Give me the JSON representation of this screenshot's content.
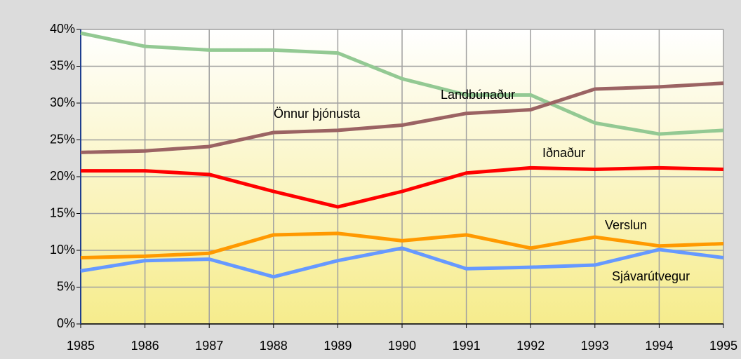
{
  "chart_data": {
    "type": "line",
    "x": [
      1985,
      1986,
      1987,
      1988,
      1989,
      1990,
      1991,
      1992,
      1993,
      1994,
      1995
    ],
    "xlim": [
      1985,
      1995
    ],
    "xticks": [
      1985,
      1986,
      1987,
      1988,
      1989,
      1990,
      1991,
      1992,
      1993,
      1994,
      1995
    ],
    "ylim": [
      0,
      40
    ],
    "yticks": [
      {
        "value": 0,
        "label": "0%"
      },
      {
        "value": 5,
        "label": "5%"
      },
      {
        "value": 10,
        "label": "10%"
      },
      {
        "value": 15,
        "label": "15%"
      },
      {
        "value": 20,
        "label": "20%"
      },
      {
        "value": 25,
        "label": "25%"
      },
      {
        "value": 30,
        "label": "30%"
      },
      {
        "value": 35,
        "label": "35%"
      },
      {
        "value": 40,
        "label": "40%"
      }
    ],
    "grid": true,
    "series": [
      {
        "name": "Landbúnaður",
        "color": "#93c993",
        "values": [
          39.5,
          37.7,
          37.2,
          37.2,
          36.8,
          33.3,
          31.1,
          31.1,
          27.3,
          25.8,
          26.3
        ]
      },
      {
        "name": "Önnur þjónusta",
        "color": "#9b6363",
        "values": [
          23.3,
          23.5,
          24.1,
          26.0,
          26.3,
          27.0,
          28.6,
          29.1,
          31.9,
          32.2,
          32.7
        ]
      },
      {
        "name": "Iðnaður",
        "color": "#ff0000",
        "values": [
          20.8,
          20.8,
          20.3,
          18.0,
          15.9,
          18.0,
          20.5,
          21.2,
          21.0,
          21.2,
          21.0
        ]
      },
      {
        "name": "Verslun",
        "color": "#ff9900",
        "values": [
          9.0,
          9.2,
          9.6,
          12.1,
          12.3,
          11.3,
          12.1,
          10.3,
          11.8,
          10.6,
          10.9
        ]
      },
      {
        "name": "Sjávarútvegur",
        "color": "#6699ff",
        "values": [
          7.2,
          8.6,
          8.8,
          6.4,
          8.6,
          10.3,
          7.5,
          7.7,
          8.0,
          10.1,
          9.0
        ]
      }
    ]
  }
}
